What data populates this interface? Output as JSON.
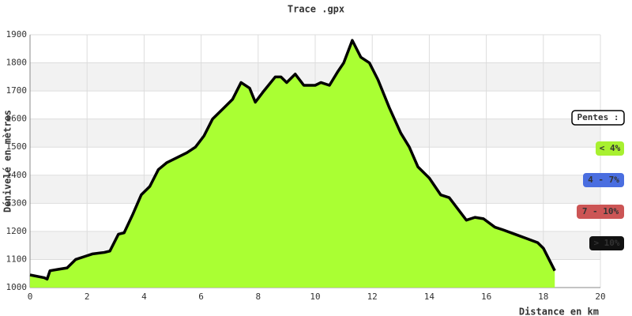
{
  "chart_data": {
    "type": "area",
    "title": "Trace .gpx",
    "x_label": "Distance en km",
    "y_label": "Dénivelé en mètres",
    "x": [
      0,
      0.5,
      0.6,
      0.7,
      1.0,
      1.3,
      1.6,
      1.9,
      2.2,
      2.6,
      2.8,
      3.1,
      3.3,
      3.6,
      3.9,
      4.2,
      4.5,
      4.8,
      5.2,
      5.5,
      5.8,
      6.1,
      6.4,
      6.8,
      7.1,
      7.4,
      7.7,
      7.9,
      8.2,
      8.6,
      8.8,
      9.0,
      9.3,
      9.6,
      10.0,
      10.2,
      10.5,
      10.8,
      11.0,
      11.3,
      11.6,
      11.9,
      12.2,
      12.6,
      13.0,
      13.3,
      13.6,
      14.0,
      14.4,
      14.7,
      15.0,
      15.3,
      15.6,
      15.9,
      16.3,
      16.6,
      17.0,
      17.4,
      17.8,
      18.0,
      18.2,
      18.4
    ],
    "values": [
      1045,
      1035,
      1030,
      1060,
      1065,
      1070,
      1100,
      1110,
      1120,
      1125,
      1130,
      1190,
      1195,
      1260,
      1330,
      1360,
      1420,
      1445,
      1465,
      1480,
      1500,
      1540,
      1600,
      1640,
      1670,
      1730,
      1710,
      1660,
      1700,
      1750,
      1750,
      1730,
      1760,
      1720,
      1720,
      1730,
      1720,
      1770,
      1800,
      1880,
      1820,
      1800,
      1740,
      1640,
      1550,
      1500,
      1430,
      1390,
      1330,
      1320,
      1280,
      1240,
      1250,
      1245,
      1215,
      1205,
      1190,
      1175,
      1160,
      1140,
      1100,
      1060
    ],
    "color": "#aaff33",
    "line_color": "#000000",
    "xlim": [
      0,
      20
    ],
    "xticks": [
      0,
      2,
      4,
      6,
      8,
      10,
      12,
      14,
      16,
      18,
      20
    ],
    "ylim": [
      1000,
      1900
    ],
    "yticks": [
      1000,
      1100,
      1200,
      1300,
      1400,
      1500,
      1600,
      1700,
      1800,
      1900
    ],
    "grid": true,
    "legend": {
      "title": "Pentes :",
      "items": [
        {
          "label": "< 4%",
          "color": "#a8f030"
        },
        {
          "label": "4 - 7%",
          "color": "#4a6ee0"
        },
        {
          "label": "7 - 10%",
          "color": "#cc5555"
        },
        {
          "label": "> 10%",
          "color": "#111111"
        }
      ]
    }
  }
}
